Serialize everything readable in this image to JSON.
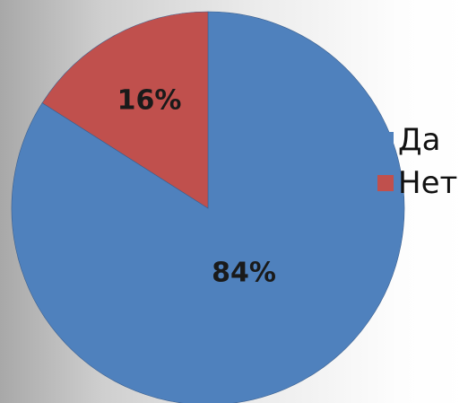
{
  "chart_data": {
    "type": "pie",
    "categories": [
      "Да",
      "Нет"
    ],
    "values": [
      84,
      16
    ],
    "value_labels": [
      "84%",
      "16%"
    ],
    "colors": [
      "#4f81bd",
      "#c0504d"
    ],
    "start_angle_deg": 0,
    "direction": "clockwise",
    "legend": "right",
    "title": ""
  }
}
